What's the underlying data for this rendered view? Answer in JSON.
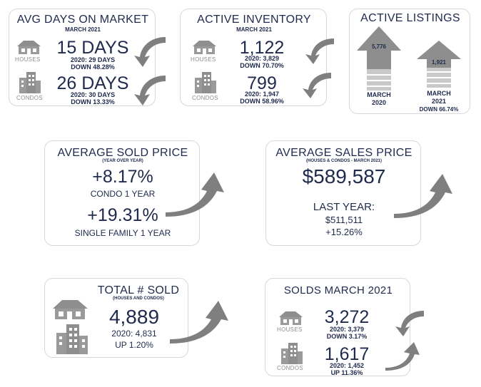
{
  "colors": {
    "navy": "#1f2a4d",
    "gray": "#8e8e8e",
    "light_gray": "#c9c9c9",
    "border": "#d6d8dc"
  },
  "avg_days": {
    "title": "AVG DAYS ON MARKET",
    "subtitle": "MARCH 2021",
    "houses": {
      "label": "HOUSES",
      "value": "15 DAYS",
      "prev": "2020: 29 DAYS",
      "change": "DOWN 48.28%"
    },
    "condos": {
      "label": "CONDOS",
      "value": "26 DAYS",
      "prev": "2020: 30 DAYS",
      "change": "DOWN 13.33%"
    }
  },
  "active_inventory": {
    "title": "ACTIVE INVENTORY",
    "subtitle": "MARCH 2021",
    "houses": {
      "label": "HOUSES",
      "value": "1,122",
      "prev": "2020: 3,829",
      "change": "DOWN 70.70%"
    },
    "condos": {
      "label": "CONDOS",
      "value": "799",
      "prev": "2020: 1,947",
      "change": "DOWN 58.96%"
    }
  },
  "active_listings": {
    "title": "ACTIVE LISTINGS",
    "bars": [
      {
        "value": "5,776",
        "label_line1": "MARCH",
        "label_line2": "2020",
        "change": ""
      },
      {
        "value": "1,921",
        "label_line1": "MARCH",
        "label_line2": "2021",
        "change": "DOWN 66.74%"
      }
    ]
  },
  "avg_sold_price": {
    "title": "AVERAGE SOLD PRICE",
    "subtitle": "(YEAR OVER YEAR)",
    "condo_value": "+8.17%",
    "condo_label": "CONDO 1 YEAR",
    "sf_value": "+19.31%",
    "sf_label": "SINGLE FAMILY 1 YEAR"
  },
  "avg_sales_price": {
    "title": "AVERAGE SALES PRICE",
    "subtitle": "(HOUSES & CONDOS - MARCH 2021)",
    "value": "$589,587",
    "last_year_label": "LAST YEAR:",
    "last_year_value": "$511,511",
    "change": "+15.26%"
  },
  "total_sold": {
    "title": "TOTAL # SOLD",
    "subtitle": "(HOUSES AND CONDOS)",
    "value": "4,889",
    "prev": "2020: 4,831",
    "change": "UP 1.20%"
  },
  "solds_march": {
    "title": "SOLDS MARCH 2021",
    "houses": {
      "label": "HOUSES",
      "value": "3,272",
      "prev": "2020: 3,379",
      "change": "DOWN 3.17%"
    },
    "condos": {
      "label": "CONDOS",
      "value": "1,617",
      "prev": "2020: 1,452",
      "change": "UP 11.36%"
    }
  }
}
